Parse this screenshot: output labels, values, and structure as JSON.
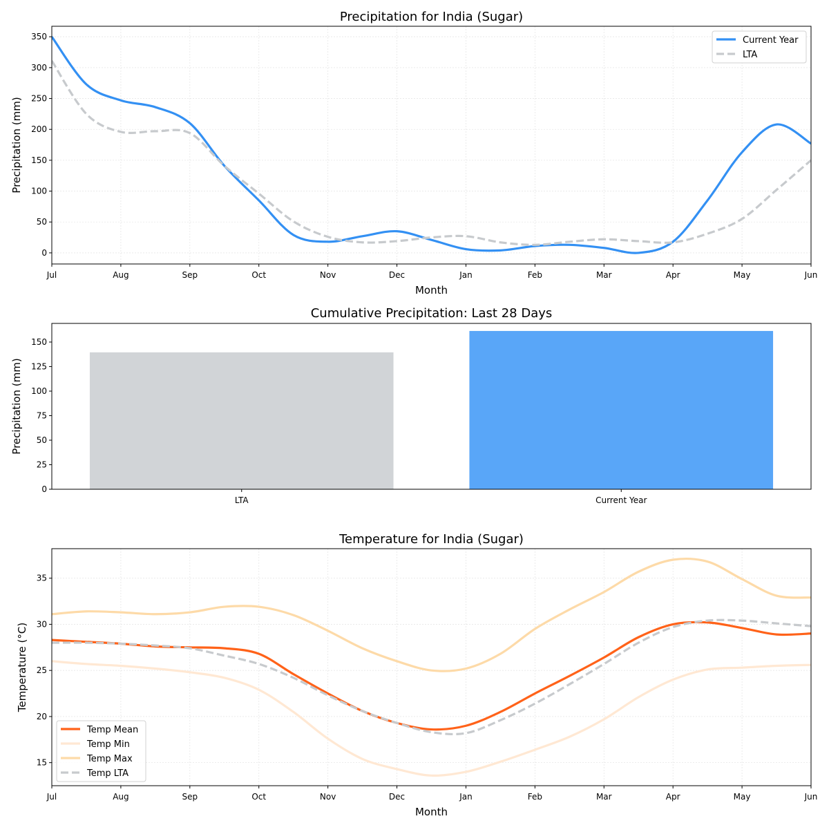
{
  "chart_data": [
    {
      "type": "line",
      "title": "Precipitation for India (Sugar)",
      "xlabel": "Month",
      "ylabel": "Precipitation (mm)",
      "x_ticks": [
        "Jul",
        "Aug",
        "Sep",
        "Oct",
        "Nov",
        "Dec",
        "Jan",
        "Feb",
        "Mar",
        "Apr",
        "May",
        "Jun"
      ],
      "x": [
        0,
        0.5,
        1,
        1.5,
        2,
        2.5,
        3,
        3.5,
        4,
        4.5,
        5,
        5.5,
        6,
        6.5,
        7,
        7.5,
        8,
        8.5,
        9,
        9.5,
        10,
        10.5,
        11
      ],
      "xlim": [
        0,
        11
      ],
      "ylim": [
        -18,
        367
      ],
      "y_ticks": [
        0,
        50,
        100,
        150,
        200,
        250,
        300,
        350
      ],
      "grid": true,
      "legend": "top-right",
      "series": [
        {
          "name": "Current Year",
          "color": "#3390f3",
          "style": "solid",
          "values": [
            350,
            273,
            247,
            236,
            210,
            141,
            85,
            29,
            18,
            27,
            35,
            21,
            6,
            4,
            11,
            13,
            8,
            0,
            18,
            85,
            163,
            208,
            177
          ]
        },
        {
          "name": "LTA",
          "color": "#c7cacd",
          "style": "dashed",
          "values": [
            311,
            225,
            196,
            197,
            194,
            141,
            96,
            51,
            26,
            17,
            19,
            25,
            27,
            17,
            13,
            18,
            22,
            19,
            17,
            31,
            55,
            102,
            150
          ]
        }
      ]
    },
    {
      "type": "bar",
      "title": "Cumulative Precipitation: Last 28 Days",
      "xlabel": "",
      "ylabel": "Precipitation (mm)",
      "categories": [
        "LTA",
        "Current Year"
      ],
      "values": [
        139.5,
        161.3
      ],
      "colors": [
        "#d1d4d7",
        "#59a6f8"
      ],
      "ylim": [
        0,
        169
      ],
      "y_ticks": [
        0,
        25,
        50,
        75,
        100,
        125,
        150
      ],
      "grid": false
    },
    {
      "type": "line",
      "title": "Temperature for India (Sugar)",
      "xlabel": "Month",
      "ylabel": "Temperature (°C)",
      "x_ticks": [
        "Jul",
        "Aug",
        "Sep",
        "Oct",
        "Nov",
        "Dec",
        "Jan",
        "Feb",
        "Mar",
        "Apr",
        "May",
        "Jun"
      ],
      "x": [
        0,
        0.5,
        1,
        1.5,
        2,
        2.5,
        3,
        3.5,
        4,
        4.5,
        5,
        5.5,
        6,
        6.5,
        7,
        7.5,
        8,
        8.5,
        9,
        9.5,
        10,
        10.5,
        11
      ],
      "xlim": [
        0,
        11
      ],
      "ylim": [
        12.5,
        38.2
      ],
      "y_ticks": [
        15,
        20,
        25,
        30,
        35
      ],
      "grid": true,
      "legend": "bottom-left",
      "series": [
        {
          "name": "Temp Mean",
          "color": "#ff6219",
          "style": "solid",
          "values": [
            28.3,
            28.1,
            27.9,
            27.6,
            27.5,
            27.4,
            26.8,
            24.6,
            22.5,
            20.6,
            19.3,
            18.6,
            19.0,
            20.5,
            22.5,
            24.4,
            26.4,
            28.6,
            30.0,
            30.2,
            29.6,
            28.9,
            29.0
          ]
        },
        {
          "name": "Temp Min",
          "color": "#ffe8d3",
          "style": "solid",
          "values": [
            26.0,
            25.7,
            25.5,
            25.2,
            24.8,
            24.2,
            22.9,
            20.5,
            17.6,
            15.4,
            14.3,
            13.6,
            14.0,
            15.1,
            16.4,
            17.8,
            19.7,
            22.1,
            24.0,
            25.1,
            25.3,
            25.5,
            25.6
          ]
        },
        {
          "name": "Temp Max",
          "color": "#fddaa8",
          "style": "solid",
          "values": [
            31.1,
            31.4,
            31.3,
            31.1,
            31.3,
            31.9,
            31.9,
            31.0,
            29.3,
            27.4,
            26.0,
            25.0,
            25.2,
            26.8,
            29.5,
            31.6,
            33.5,
            35.7,
            37.0,
            36.8,
            34.9,
            33.1,
            32.9
          ]
        },
        {
          "name": "Temp LTA",
          "color": "#c7cacd",
          "style": "dashed",
          "values": [
            28.0,
            28.0,
            27.9,
            27.7,
            27.4,
            26.6,
            25.7,
            24.2,
            22.3,
            20.6,
            19.3,
            18.3,
            18.2,
            19.6,
            21.4,
            23.5,
            25.7,
            28.0,
            29.7,
            30.4,
            30.4,
            30.1,
            29.8
          ]
        }
      ]
    }
  ]
}
